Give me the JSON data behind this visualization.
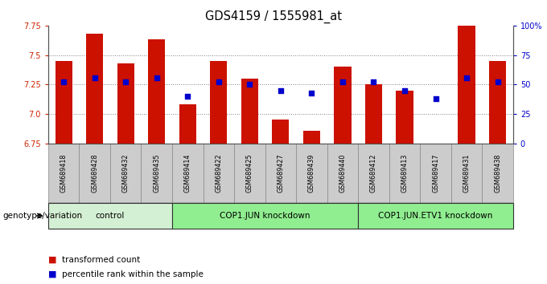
{
  "title": "GDS4159 / 1555981_at",
  "samples": [
    "GSM689418",
    "GSM689428",
    "GSM689432",
    "GSM689435",
    "GSM689414",
    "GSM689422",
    "GSM689425",
    "GSM689427",
    "GSM689439",
    "GSM689440",
    "GSM689412",
    "GSM689413",
    "GSM689417",
    "GSM689431",
    "GSM689438"
  ],
  "transformed_count": [
    7.45,
    7.68,
    7.43,
    7.63,
    7.08,
    7.45,
    7.3,
    6.95,
    6.86,
    7.4,
    7.25,
    7.2,
    6.75,
    7.82,
    7.45
  ],
  "percentile_rank": [
    52,
    56,
    52,
    56,
    40,
    52,
    50,
    45,
    43,
    52,
    52,
    45,
    38,
    56,
    52
  ],
  "bar_color": "#cc1100",
  "dot_color": "#0000cc",
  "bar_bottom": 6.75,
  "ylim_left": [
    6.75,
    7.75
  ],
  "ylim_right": [
    0,
    100
  ],
  "left_ticks": [
    6.75,
    7.0,
    7.25,
    7.5,
    7.75
  ],
  "right_ticks": [
    0,
    25,
    50,
    75,
    100
  ],
  "right_tick_labels": [
    "0",
    "25",
    "50",
    "75",
    "100%"
  ],
  "grid_values": [
    7.0,
    7.25,
    7.5
  ],
  "left_tick_color": "#cc2200",
  "right_tick_color": "#0000cc",
  "groups": [
    {
      "label": "control",
      "start": 0,
      "end": 4,
      "bg": "#d4f0d4"
    },
    {
      "label": "COP1.JUN knockdown",
      "start": 4,
      "end": 10,
      "bg": "#90ee90"
    },
    {
      "label": "COP1.JUN.ETV1 knockdown",
      "start": 10,
      "end": 15,
      "bg": "#90ee90"
    }
  ],
  "legend_items": [
    "transformed count",
    "percentile rank within the sample"
  ],
  "legend_colors": [
    "#cc1100",
    "#0000cc"
  ],
  "xlabel_label": "genotype/variation",
  "tick_box_color": "#cccccc",
  "tick_box_edge": "#888888",
  "group_border_color": "#333333"
}
